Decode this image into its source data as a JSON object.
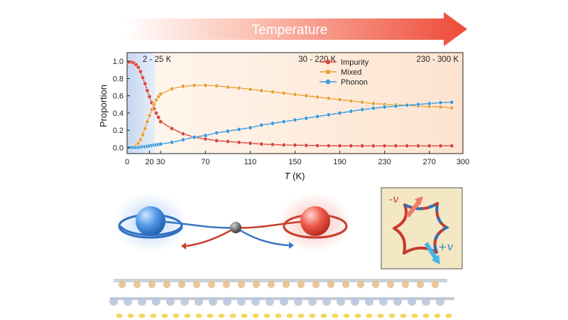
{
  "banner": {
    "label": "Temperature"
  },
  "colors": {
    "impurity": "#d94841",
    "mixed": "#e8a33c",
    "phonon": "#3d9bd9",
    "banner": "#ee4a37",
    "inset_bg": "#f3e7c4"
  },
  "chart_data": {
    "type": "line",
    "title": "",
    "xlabel_italic": "T",
    "xlabel_unit": "(K)",
    "ylabel": "Proportion",
    "xlim": [
      0,
      300
    ],
    "ylim": [
      -0.07,
      1.1
    ],
    "xticks": [
      0,
      20,
      30,
      70,
      110,
      150,
      190,
      230,
      270,
      300
    ],
    "yticks": [
      0.0,
      0.2,
      0.4,
      0.6,
      0.8,
      1.0
    ],
    "ytick_labels": [
      "0.0",
      "0.2",
      "0.4",
      "0.6",
      "0.8",
      "1.0"
    ],
    "legend_position": "top-right",
    "regions": [
      {
        "label": "2 - 25 K",
        "from": 0,
        "to": 25
      },
      {
        "label": "30 - 220 K",
        "from": 25,
        "to": 225
      },
      {
        "label": "230 - 300 K",
        "from": 225,
        "to": 300
      }
    ],
    "x": [
      2,
      4,
      6,
      8,
      10,
      12,
      14,
      16,
      18,
      20,
      22,
      24,
      26,
      28,
      30,
      40,
      50,
      60,
      70,
      80,
      90,
      100,
      110,
      120,
      130,
      140,
      150,
      160,
      170,
      180,
      190,
      200,
      210,
      220,
      230,
      240,
      250,
      260,
      270,
      280,
      290
    ],
    "series": [
      {
        "name": "Impurity",
        "values": [
          0.99,
          0.99,
          0.98,
          0.96,
          0.93,
          0.88,
          0.81,
          0.74,
          0.66,
          0.59,
          0.52,
          0.45,
          0.4,
          0.35,
          0.3,
          0.22,
          0.16,
          0.12,
          0.1,
          0.08,
          0.07,
          0.06,
          0.05,
          0.04,
          0.035,
          0.03,
          0.028,
          0.025,
          0.023,
          0.022,
          0.021,
          0.02,
          0.02,
          0.02,
          0.02,
          0.02,
          0.02,
          0.02,
          0.02,
          0.02,
          0.02
        ]
      },
      {
        "name": "Mixed",
        "values": [
          0.0,
          0.0,
          0.01,
          0.02,
          0.05,
          0.09,
          0.15,
          0.22,
          0.3,
          0.37,
          0.44,
          0.5,
          0.55,
          0.59,
          0.62,
          0.68,
          0.71,
          0.72,
          0.72,
          0.715,
          0.7,
          0.69,
          0.675,
          0.66,
          0.645,
          0.63,
          0.615,
          0.6,
          0.585,
          0.57,
          0.555,
          0.54,
          0.525,
          0.51,
          0.5,
          0.495,
          0.49,
          0.48,
          0.475,
          0.47,
          0.46
        ]
      },
      {
        "name": "Phonon",
        "values": [
          0.0,
          0.0,
          0.0,
          0.0,
          0.0,
          0.005,
          0.01,
          0.01,
          0.015,
          0.02,
          0.025,
          0.03,
          0.03,
          0.035,
          0.04,
          0.06,
          0.09,
          0.12,
          0.14,
          0.17,
          0.19,
          0.21,
          0.23,
          0.26,
          0.28,
          0.3,
          0.32,
          0.34,
          0.36,
          0.38,
          0.4,
          0.42,
          0.44,
          0.455,
          0.47,
          0.48,
          0.49,
          0.5,
          0.51,
          0.52,
          0.525
        ]
      }
    ]
  },
  "inset": {
    "minus_label": "-v",
    "plus_label": "+v"
  }
}
